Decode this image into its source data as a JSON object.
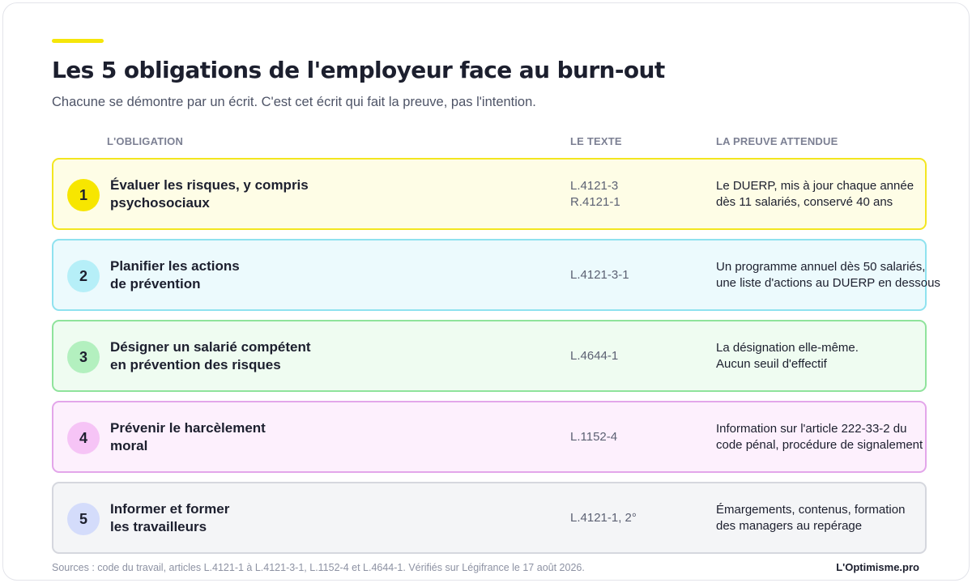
{
  "header": {
    "title": "Les 5 obligations de l'employeur face au burn-out",
    "subtitle": "Chacune se démontre par un écrit. C'est cet écrit qui fait la preuve, pas l'intention."
  },
  "columns": {
    "obligation": "L'OBLIGATION",
    "texte": "LE TEXTE",
    "preuve": "LA PREUVE ATTENDUE"
  },
  "rows": [
    {
      "number": "1",
      "obligation": [
        "Évaluer les risques, y compris",
        "psychosociaux"
      ],
      "texte": [
        "L.4121-3",
        "R.4121-1"
      ],
      "preuve": [
        "Le DUERP, mis à jour chaque année",
        "dès 11 salariés, conservé 40 ans"
      ]
    },
    {
      "number": "2",
      "obligation": [
        "Planifier les actions",
        "de prévention"
      ],
      "texte": [
        "L.4121-3-1"
      ],
      "preuve": [
        "Un programme annuel dès 50 salariés,",
        "une liste d'actions au DUERP en dessous"
      ]
    },
    {
      "number": "3",
      "obligation": [
        "Désigner un salarié compétent",
        "en prévention des risques"
      ],
      "texte": [
        "L.4644-1"
      ],
      "preuve": [
        "La désignation elle-même.",
        "Aucun seuil d'effectif"
      ]
    },
    {
      "number": "4",
      "obligation": [
        "Prévenir le harcèlement",
        "moral"
      ],
      "texte": [
        "L.1152-4"
      ],
      "preuve": [
        "Information sur l'article 222-33-2 du",
        "code pénal, procédure de signalement"
      ]
    },
    {
      "number": "5",
      "obligation": [
        "Informer et former",
        "les travailleurs"
      ],
      "texte": [
        "L.4121-1, 2°"
      ],
      "preuve": [
        "Émargements, contenus, formation",
        "des managers au repérage"
      ]
    }
  ],
  "footer": {
    "sources": "Sources : code du travail, articles L.4121-1 à L.4121-3-1, L.1152-4 et L.4644-1. Vérifiés sur Légifrance le 17 août 2026.",
    "brand": "L'Optimisme.pro"
  },
  "colors": {
    "accent": "#f5e60a",
    "row1": "#f3e620",
    "row2": "#8fe2ef",
    "row3": "#8fe39c",
    "row4": "#e3a6ea",
    "row5": "#d5d7de"
  }
}
